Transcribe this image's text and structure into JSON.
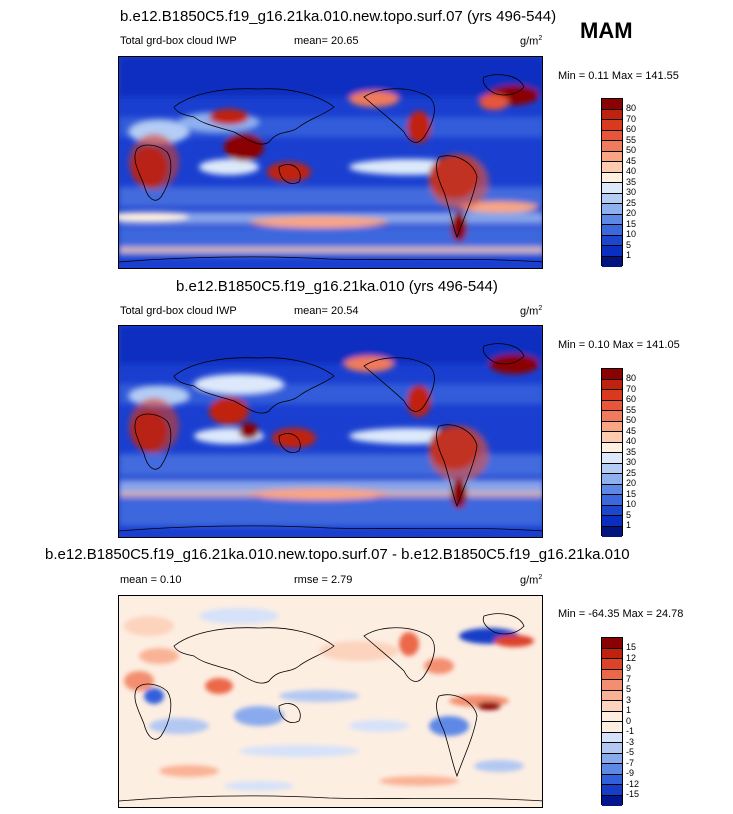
{
  "season": "MAM",
  "panels": [
    {
      "title": "b.e12.B1850C5.f19_g16.21ka.010.new.topo.surf.07 (yrs 496-544)",
      "left_label": "Total grd-box cloud IWP",
      "stat_label": "mean=  20.65",
      "stat2_label": "",
      "units": "g/m",
      "units_sup": "2",
      "minmax": "Min =   0.11 Max = 141.55",
      "levels": [
        "80",
        "70",
        "60",
        "55",
        "50",
        "45",
        "40",
        "35",
        "30",
        "25",
        "20",
        "15",
        "10",
        "5",
        "1"
      ],
      "colors": [
        "#8b0000",
        "#c1220f",
        "#d93a1e",
        "#e8553a",
        "#f07a5c",
        "#f9a584",
        "#fccbb0",
        "#fff0e0",
        "#dde9fb",
        "#b4cdf5",
        "#8fb0ef",
        "#5d89e6",
        "#3c68dd",
        "#1d46cf",
        "#0a2fc0",
        "#02157f"
      ]
    },
    {
      "title": "b.e12.B1850C5.f19_g16.21ka.010 (yrs 496-544)",
      "left_label": "Total grd-box cloud IWP",
      "stat_label": "mean=  20.54",
      "stat2_label": "",
      "units": "g/m",
      "units_sup": "2",
      "minmax": "Min =   0.10 Max = 141.05",
      "levels": [
        "80",
        "70",
        "60",
        "55",
        "50",
        "45",
        "40",
        "35",
        "30",
        "25",
        "20",
        "15",
        "10",
        "5",
        "1"
      ],
      "colors": [
        "#8b0000",
        "#c1220f",
        "#d93a1e",
        "#e8553a",
        "#f07a5c",
        "#f9a584",
        "#fccbb0",
        "#fff0e0",
        "#dde9fb",
        "#b4cdf5",
        "#8fb0ef",
        "#5d89e6",
        "#3c68dd",
        "#1d46cf",
        "#0a2fc0",
        "#02157f"
      ]
    },
    {
      "title": "b.e12.B1850C5.f19_g16.21ka.010.new.topo.surf.07 - b.e12.B1850C5.f19_g16.21ka.010",
      "left_label": "mean =   0.10",
      "stat_label": "rmse =   2.79",
      "stat2_label": "",
      "units": "g/m",
      "units_sup": "2",
      "minmax": "Min = -64.35 Max =  24.78",
      "levels": [
        "15",
        "12",
        "9",
        "7",
        "5",
        "3",
        "1",
        "0",
        "-1",
        "-3",
        "-5",
        "-7",
        "-9",
        "-12",
        "-15"
      ],
      "colors": [
        "#8b0000",
        "#c1220f",
        "#dc4329",
        "#eb6849",
        "#f38f70",
        "#f9b295",
        "#fcd3bd",
        "#fdeee2",
        "#fdeee2",
        "#d5e2f9",
        "#b2c8f3",
        "#8aaaee",
        "#5d88e6",
        "#3160db",
        "#173dc8",
        "#04168d"
      ]
    }
  ]
}
